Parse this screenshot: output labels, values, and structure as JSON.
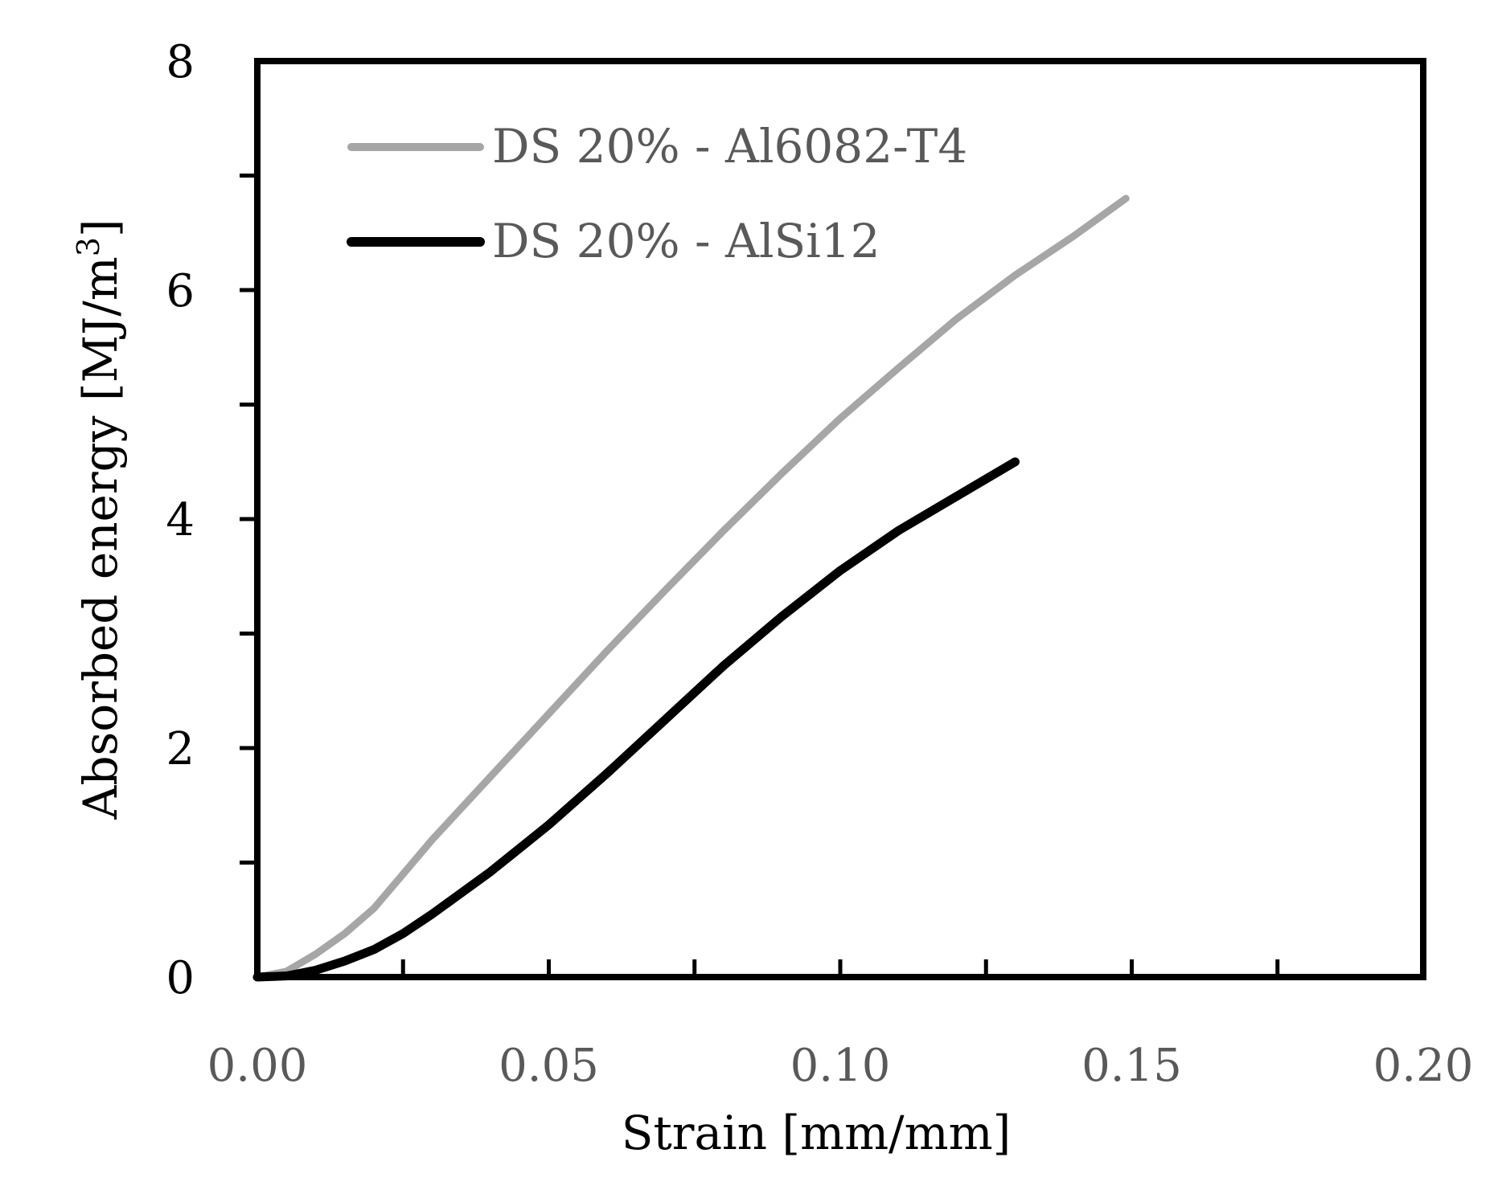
{
  "chart_data": {
    "type": "line",
    "xlabel": "Strain [mm/mm]",
    "ylabel_main": "Absorbed energy [MJ/m",
    "ylabel_sup": "3",
    "ylabel_close": "]",
    "xlim": [
      0,
      0.2
    ],
    "ylim": [
      0,
      8
    ],
    "x_ticks": [
      "0.00",
      "0.05",
      "0.10",
      "0.15",
      "0.20"
    ],
    "x_tick_values": [
      0,
      0.05,
      0.1,
      0.15,
      0.2
    ],
    "x_minor_ticks": [
      0.025,
      0.075,
      0.125,
      0.175
    ],
    "y_ticks": [
      "0",
      "2",
      "4",
      "6",
      "8"
    ],
    "y_tick_values": [
      0,
      2,
      4,
      6,
      8
    ],
    "y_minor_ticks": [
      1,
      3,
      5,
      7
    ],
    "grid": false,
    "legend_position": "top-left",
    "series": [
      {
        "name": "DS 20% - Al6082-T4",
        "color": "#a6a6a6",
        "x": [
          0,
          0.005,
          0.01,
          0.015,
          0.02,
          0.025,
          0.03,
          0.04,
          0.05,
          0.06,
          0.07,
          0.08,
          0.09,
          0.1,
          0.11,
          0.12,
          0.13,
          0.14,
          0.149
        ],
        "y": [
          0,
          0.05,
          0.2,
          0.38,
          0.6,
          0.9,
          1.2,
          1.75,
          2.3,
          2.85,
          3.38,
          3.9,
          4.4,
          4.88,
          5.32,
          5.75,
          6.13,
          6.47,
          6.8
        ]
      },
      {
        "name": "DS 20% - AlSi12",
        "color": "#000000",
        "x": [
          0,
          0.005,
          0.01,
          0.015,
          0.02,
          0.025,
          0.03,
          0.04,
          0.05,
          0.06,
          0.07,
          0.08,
          0.09,
          0.1,
          0.11,
          0.12,
          0.13
        ],
        "y": [
          0,
          0.01,
          0.06,
          0.14,
          0.24,
          0.38,
          0.55,
          0.92,
          1.33,
          1.78,
          2.25,
          2.72,
          3.15,
          3.55,
          3.9,
          4.2,
          4.5
        ]
      }
    ]
  }
}
